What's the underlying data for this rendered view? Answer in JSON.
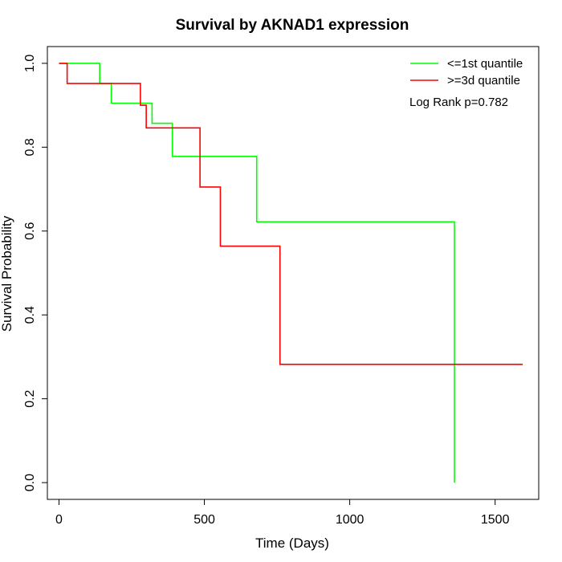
{
  "chart_data": {
    "type": "line",
    "step": true,
    "title": "Survival by AKNAD1 expression",
    "xlabel": "Time (Days)",
    "ylabel": "Survival Probability",
    "xlim": [
      -40,
      1650
    ],
    "ylim": [
      -0.04,
      1.04
    ],
    "xticks": [
      0,
      500,
      1000,
      1500
    ],
    "yticks": [
      0.0,
      0.2,
      0.4,
      0.6,
      0.8,
      1.0
    ],
    "xtick_labels": [
      "0",
      "500",
      "1000",
      "1500"
    ],
    "ytick_labels": [
      "0.0",
      "0.2",
      "0.4",
      "0.6",
      "0.8",
      "1.0"
    ],
    "legend_position": "top-right",
    "annotation": "Log Rank p=0.782",
    "grid": false,
    "series": [
      {
        "name": "<=1st quantile",
        "color": "#00ff00",
        "x": [
          0,
          140,
          180,
          320,
          390,
          680,
          1360
        ],
        "y": [
          1.0,
          0.952,
          0.905,
          0.857,
          0.778,
          0.622,
          0.0
        ]
      },
      {
        "name": ">=3d quantile",
        "color": "#ff0000",
        "x": [
          0,
          28,
          280,
          300,
          485,
          555,
          760,
          1595
        ],
        "y": [
          1.0,
          0.952,
          0.9,
          0.846,
          0.705,
          0.564,
          0.282,
          0.282
        ]
      }
    ]
  }
}
